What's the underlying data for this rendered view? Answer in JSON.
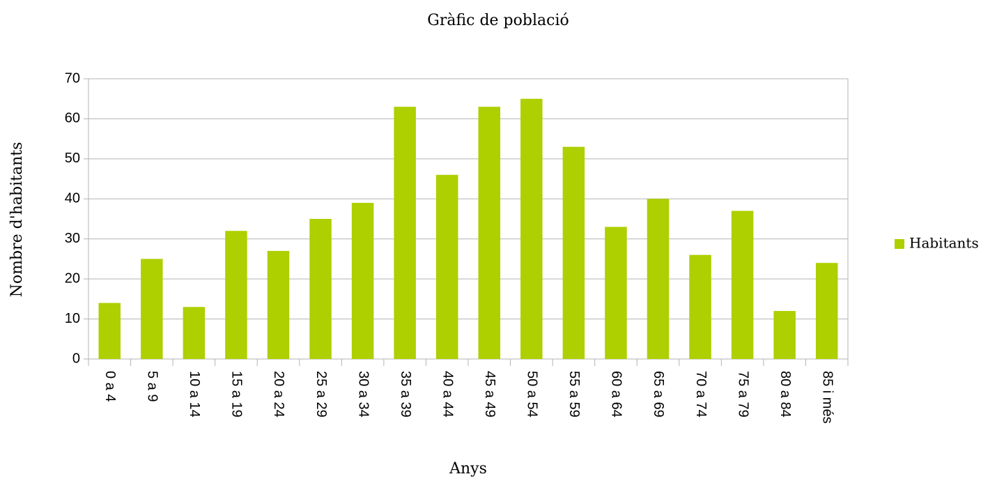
{
  "chart_data": {
    "type": "bar",
    "title": "Gràfic de població",
    "x_label": "Anys",
    "y_label": "Nombre d'habitants",
    "categories": [
      "0 a 4",
      "5 a 9",
      "10 a 14",
      "15 a 19",
      "20 a 24",
      "25 a 29",
      "30 a 34",
      "35 a 39",
      "40 a 44",
      "45 a 49",
      "50 a 54",
      "55 a 59",
      "60 a 64",
      "65 a 69",
      "70 a 74",
      "75 a 79",
      "80 a 84",
      "85 i més"
    ],
    "series": [
      {
        "name": "Habitants",
        "color": "#aecf00",
        "values": [
          14,
          25,
          13,
          32,
          27,
          35,
          39,
          63,
          46,
          63,
          65,
          53,
          33,
          40,
          26,
          37,
          12,
          24
        ]
      }
    ],
    "ylim": [
      0,
      70
    ],
    "yticks": [
      0,
      10,
      20,
      30,
      40,
      50,
      60,
      70
    ],
    "grid": true,
    "legend": "right"
  }
}
